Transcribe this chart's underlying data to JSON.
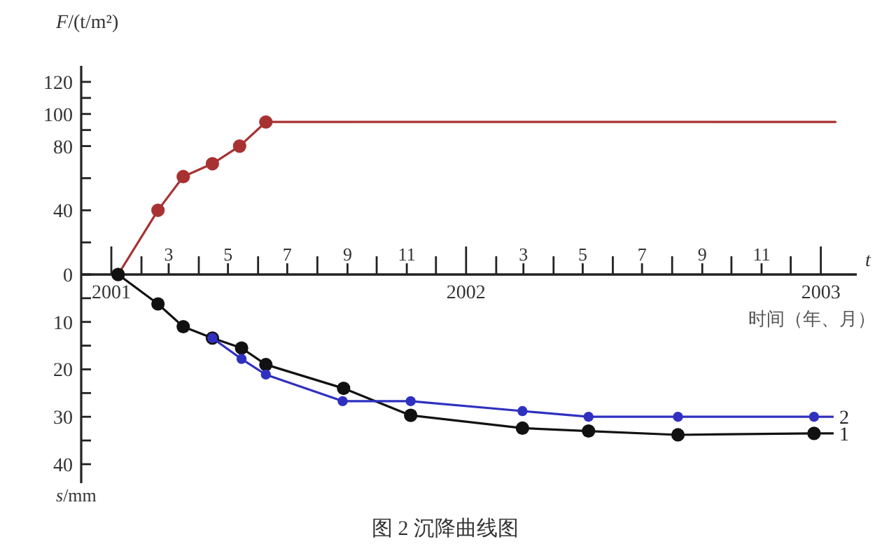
{
  "chart_data": [
    {
      "type": "line",
      "ylabel": "F/(t/m²)",
      "xlabel": "t",
      "annotations": [
        "时间（年、月）"
      ],
      "xlim": [
        "2000-12-01",
        "2003-02-07"
      ],
      "xticks": [
        {
          "value": "2001-02",
          "label": null
        },
        {
          "value": "2001-03",
          "label": "3"
        },
        {
          "value": "2001-04",
          "label": null
        },
        {
          "value": "2001-05",
          "label": "5"
        },
        {
          "value": "2001-06",
          "label": null
        },
        {
          "value": "2001-07",
          "label": "7"
        },
        {
          "value": "2001-08",
          "label": null
        },
        {
          "value": "2001-09",
          "label": "9"
        },
        {
          "value": "2001-10",
          "label": null
        },
        {
          "value": "2001-11",
          "label": "11"
        },
        {
          "value": "2001-12",
          "label": null
        },
        {
          "value": "2002-02",
          "label": null
        },
        {
          "value": "2002-03",
          "label": "3"
        },
        {
          "value": "2002-04",
          "label": null
        },
        {
          "value": "2002-05",
          "label": "5"
        },
        {
          "value": "2002-06",
          "label": null
        },
        {
          "value": "2002-07",
          "label": "7"
        },
        {
          "value": "2002-08",
          "label": null
        },
        {
          "value": "2002-09",
          "label": "9"
        },
        {
          "value": "2002-10",
          "label": null
        },
        {
          "value": "2002-11",
          "label": "11"
        },
        {
          "value": "2002-12",
          "label": null
        }
      ],
      "ylim": [
        0,
        130
      ],
      "yticks": [
        0,
        {
          "value": 20,
          "label": null
        },
        40,
        {
          "value": 60,
          "label": null
        },
        80,
        {
          "value": 90,
          "label": null
        },
        100,
        {
          "value": 110,
          "label": null
        },
        120
      ],
      "series": [
        {
          "color": "#a83232",
          "marker": "circle",
          "x": [
            "2001-01-08",
            "2001-02-18",
            "2001-03-16",
            "2001-04-15",
            "2001-05-13",
            "2001-06-09"
          ],
          "values": [
            0,
            40,
            61,
            69,
            80,
            95
          ]
        },
        {
          "color": "#a83232",
          "marker": "none",
          "x": [
            "2001-06-09",
            "2003-01-16"
          ],
          "values": [
            95,
            95
          ]
        }
      ]
    },
    {
      "type": "line",
      "ylabel": "s/mm",
      "legend": "right",
      "annotations": [
        "图 2 沉降曲线图"
      ],
      "xlim": [
        "2000-12-01",
        "2003-02-07"
      ],
      "xticks": [
        {
          "value": "2001-01",
          "label": "2001"
        },
        {
          "value": "2002-01",
          "label": "2002"
        },
        {
          "value": "2003-01",
          "label": "2003"
        }
      ],
      "ylim": [
        44,
        0
      ],
      "yticks": [
        {
          "value": 0,
          "label": null
        },
        {
          "value": 5,
          "label": null
        },
        10,
        {
          "value": 15,
          "label": null
        },
        20,
        {
          "value": 25,
          "label": null
        },
        30,
        {
          "value": 35,
          "label": null
        },
        40
      ],
      "series": [
        {
          "name": "1",
          "color": "#111111",
          "marker": "circle",
          "x": [
            "2001-01-08",
            "2001-02-18",
            "2001-03-16",
            "2001-04-15",
            "2001-05-15",
            "2001-06-09",
            "2001-08-28",
            "2001-11-05",
            "2002-02-28",
            "2002-05-07",
            "2002-08-07",
            "2002-12-25"
          ],
          "values": [
            0,
            6.2,
            11,
            13.4,
            15.5,
            19,
            24,
            29.7,
            32.4,
            33,
            33.8,
            33.5
          ]
        },
        {
          "name": "2",
          "color": "#3030c0",
          "marker": "circle",
          "x": [
            "2001-04-15",
            "2001-05-15",
            "2001-06-09",
            "2001-08-27",
            "2001-11-05",
            "2002-02-28",
            "2002-05-07",
            "2002-08-07",
            "2002-12-25"
          ],
          "values": [
            13.4,
            17.8,
            21.1,
            26.7,
            26.7,
            28.8,
            30,
            30,
            30
          ]
        }
      ]
    }
  ]
}
